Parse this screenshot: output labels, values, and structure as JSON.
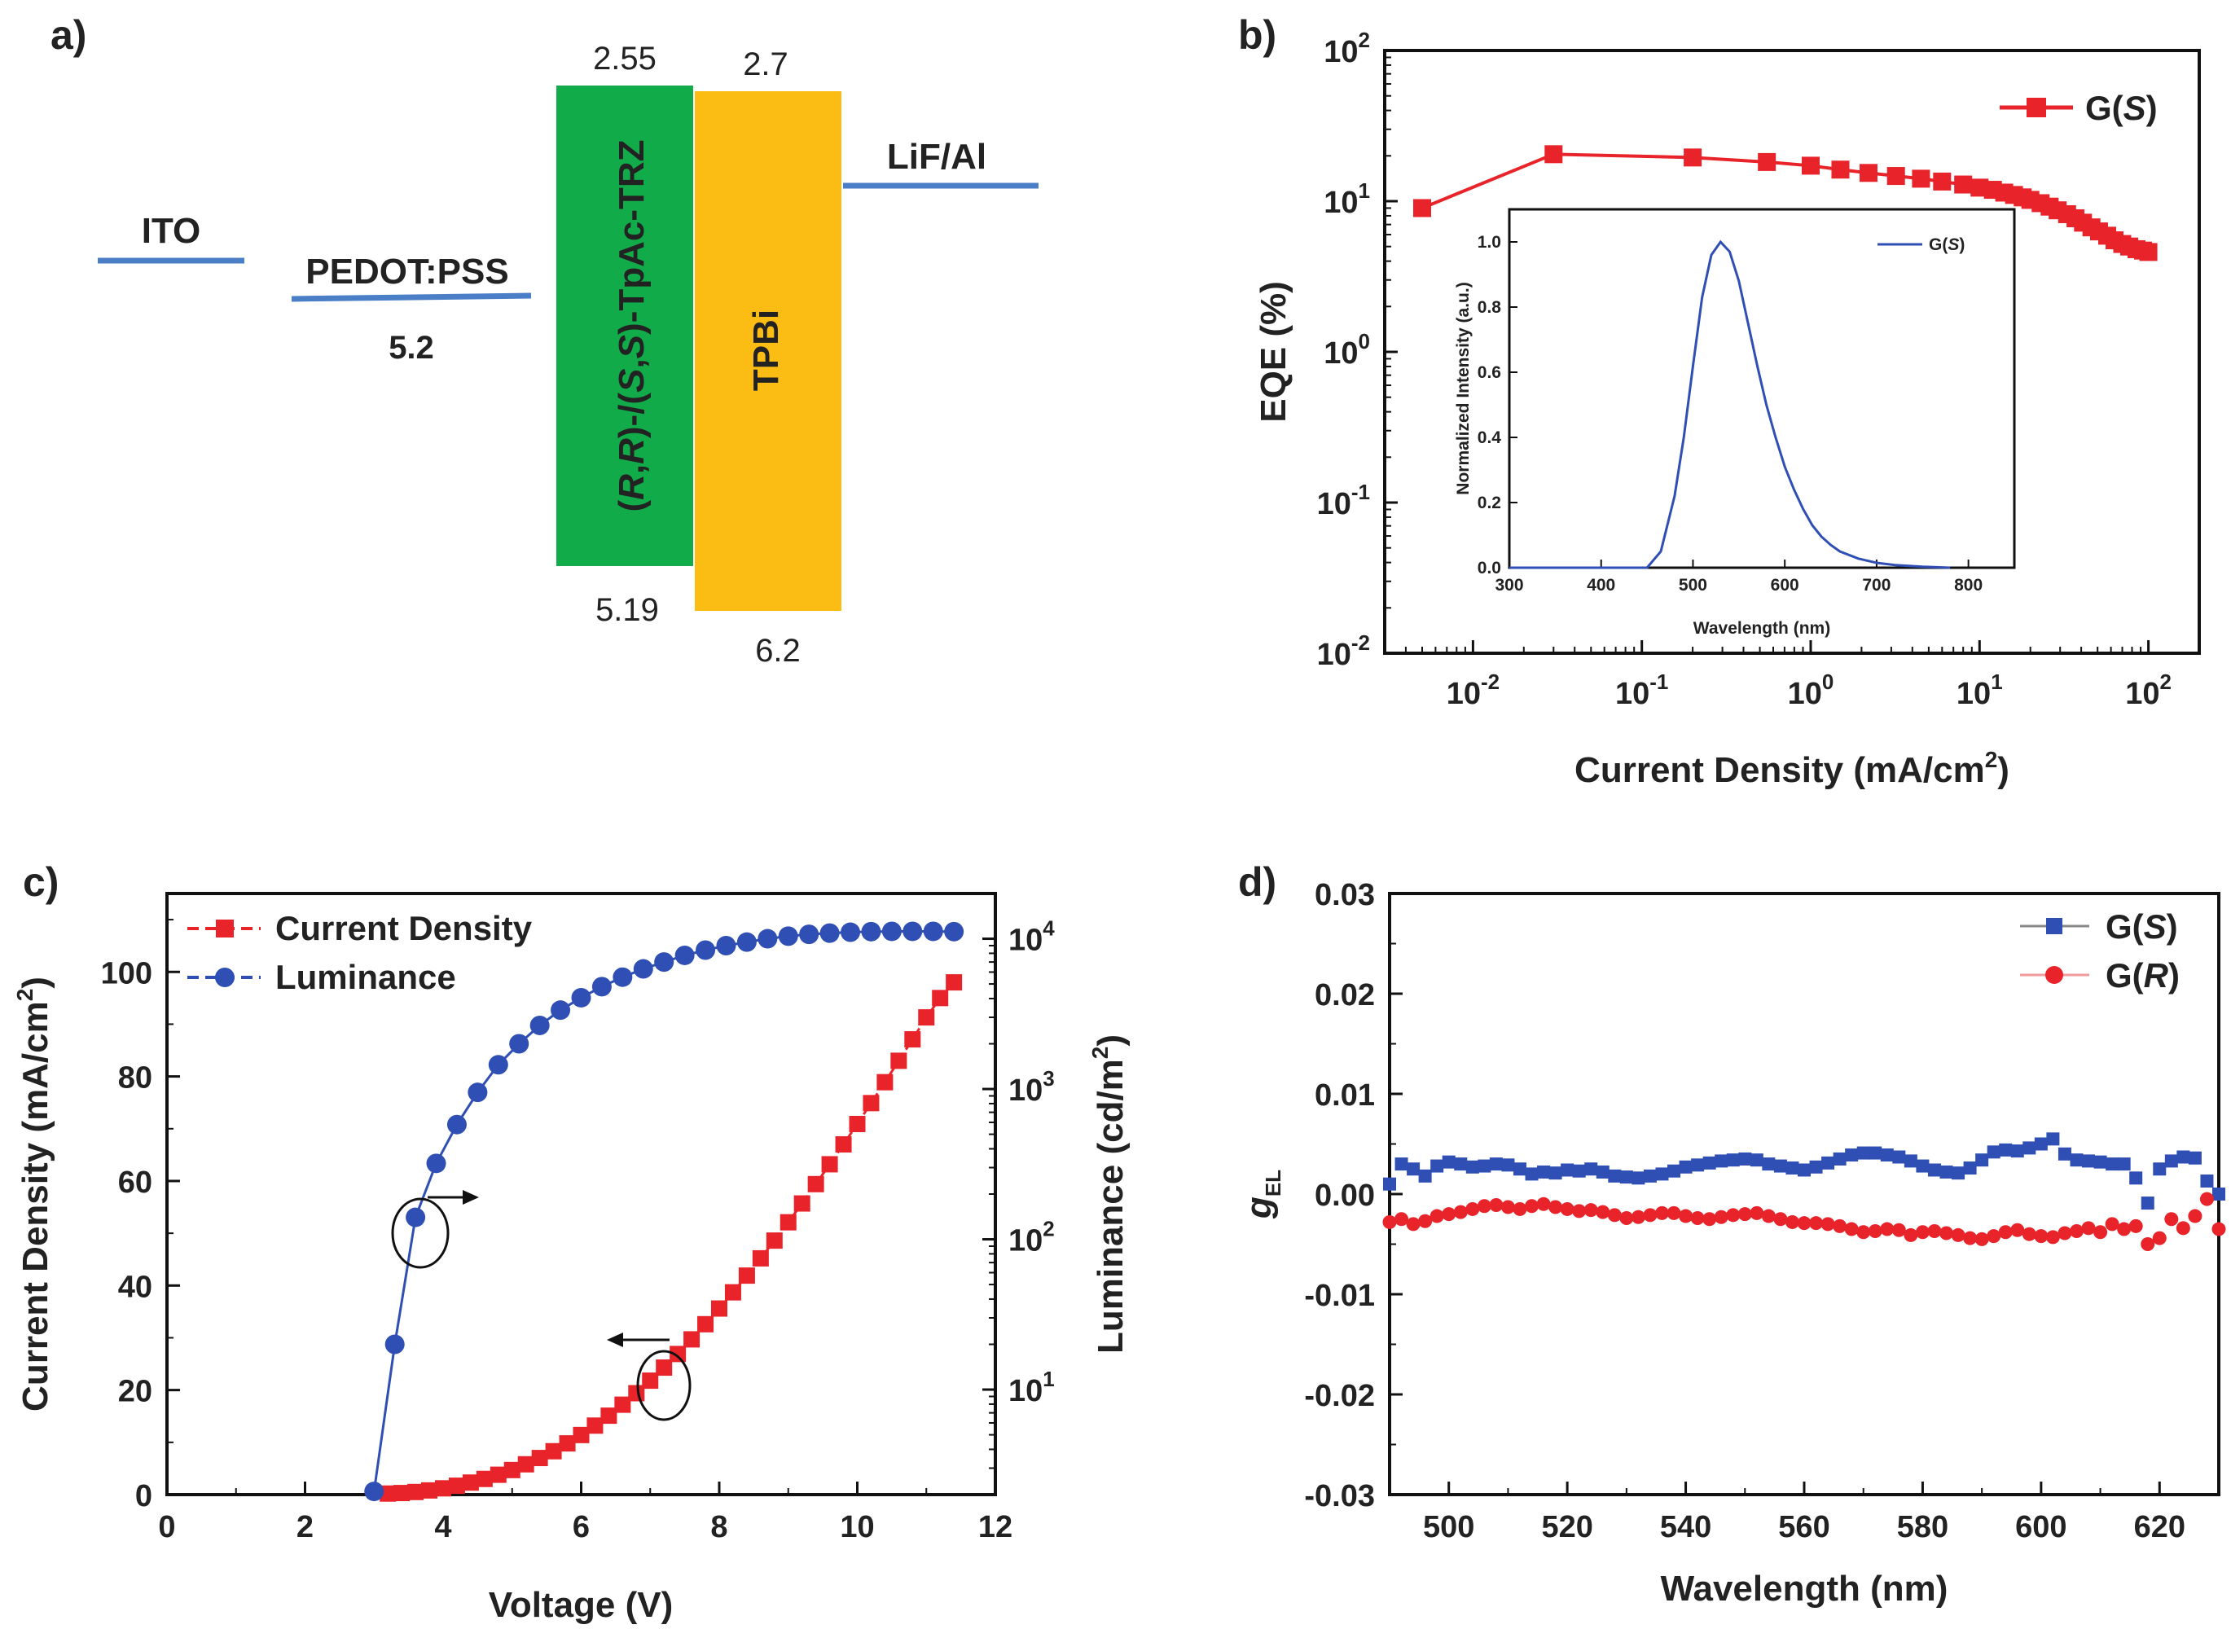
{
  "panels": {
    "a": {
      "label": "a)",
      "electrodes": [
        {
          "name": "ITO",
          "energy": "",
          "color": "#4a7ec7"
        },
        {
          "name": "PEDOT:PSS",
          "energy": "5.2",
          "color": "#4a7ec7"
        },
        {
          "name": "LiF/Al",
          "energy": "",
          "color": "#4a7ec7"
        }
      ],
      "layers": [
        {
          "name": "(R,R)-/(S,S)-TpAc-TRZ",
          "name_parts": [
            "(",
            "R",
            ",",
            "R",
            ")-/(",
            "S",
            ",",
            "S",
            ")-TpAc-TRZ"
          ],
          "lumo": "2.55",
          "homo": "5.19",
          "color": "#12ab4a"
        },
        {
          "name": "TPBi",
          "lumo": "2.7",
          "homo": "6.2",
          "color": "#fbbd13"
        }
      ]
    },
    "b": {
      "label": "b)",
      "xlabel": "Current Density (mA/cm",
      "xlabel_sup": "2",
      "xlabel_end": ")",
      "ylabel": "EQE (%)",
      "x_ticks": [
        {
          "base": "10",
          "exp": "-2"
        },
        {
          "base": "10",
          "exp": "-1"
        },
        {
          "base": "10",
          "exp": "0"
        },
        {
          "base": "10",
          "exp": "1"
        },
        {
          "base": "10",
          "exp": "2"
        }
      ],
      "y_ticks": [
        {
          "base": "10",
          "exp": "-2"
        },
        {
          "base": "10",
          "exp": "-1"
        },
        {
          "base": "10",
          "exp": "0"
        },
        {
          "base": "10",
          "exp": "1"
        },
        {
          "base": "10",
          "exp": "2"
        }
      ],
      "legend": {
        "prefix": "G(",
        "italic": "S",
        "suffix": ")"
      },
      "inset": {
        "xlabel": "Wavelength (nm)",
        "ylabel": "Normalized Intensity (a.u.)",
        "x_ticks": [
          "300",
          "400",
          "500",
          "600",
          "700",
          "800"
        ],
        "y_ticks": [
          "0.0",
          "0.2",
          "0.4",
          "0.6",
          "0.8",
          "1.0"
        ],
        "legend": {
          "prefix": "G(",
          "italic": "S",
          "suffix": ")"
        }
      }
    },
    "c": {
      "label": "c)",
      "xlabel": "Voltage (V)",
      "ylabel_left": "Current Density (mA/cm",
      "ylabel_left_sup": "2",
      "ylabel_left_end": ")",
      "ylabel_right": "Luminance (cd/m",
      "ylabel_right_sup": "2",
      "ylabel_right_end": ")",
      "x_ticks": [
        "0",
        "2",
        "4",
        "6",
        "8",
        "10",
        "12"
      ],
      "y_left_ticks": [
        "0",
        "20",
        "40",
        "60",
        "80",
        "100"
      ],
      "y_right_ticks": [
        {
          "base": "10",
          "exp": "1"
        },
        {
          "base": "10",
          "exp": "2"
        },
        {
          "base": "10",
          "exp": "3"
        },
        {
          "base": "10",
          "exp": "4"
        }
      ],
      "legend": [
        "Current Density",
        "Luminance"
      ]
    },
    "d": {
      "label": "d)",
      "xlabel": "Wavelength (nm)",
      "ylabel": "g",
      "ylabel_sub": "EL",
      "x_ticks": [
        "500",
        "520",
        "540",
        "560",
        "580",
        "600",
        "620"
      ],
      "y_ticks": [
        "-0.03",
        "-0.02",
        "-0.01",
        "0.00",
        "0.01",
        "0.02",
        "0.03"
      ],
      "legend": [
        {
          "prefix": "G(",
          "italic": "S",
          "suffix": ")"
        },
        {
          "prefix": "G(",
          "italic": "R",
          "suffix": ")"
        }
      ]
    }
  },
  "chart_data": [
    {
      "panel": "b",
      "type": "scatter",
      "title": "",
      "xlabel": "Current Density (mA/cm2)",
      "ylabel": "EQE (%)",
      "x_scale": "log",
      "y_scale": "log",
      "xlim": [
        0.003,
        200
      ],
      "ylim": [
        0.01,
        100
      ],
      "legend_position": "top-right",
      "series": [
        {
          "name": "G(S)",
          "color": "#e8232a",
          "x": [
            0.005,
            0.03,
            0.2,
            0.55,
            1,
            1.5,
            2.2,
            3.2,
            4.5,
            6,
            8,
            10,
            12,
            14,
            16,
            18,
            20,
            23,
            26,
            29,
            33,
            37,
            41,
            46,
            51,
            57,
            63,
            70,
            77,
            85,
            93,
            100
          ],
          "y": [
            9.0,
            20.5,
            19.5,
            18.2,
            17.2,
            16.2,
            15.4,
            14.7,
            14.1,
            13.5,
            12.9,
            12.3,
            11.9,
            11.4,
            11.0,
            10.6,
            10.2,
            9.7,
            9.2,
            8.7,
            8.2,
            7.7,
            7.2,
            6.7,
            6.3,
            5.9,
            5.5,
            5.2,
            5.0,
            4.8,
            4.7,
            4.6
          ]
        }
      ]
    },
    {
      "panel": "b-inset",
      "type": "line",
      "xlabel": "Wavelength (nm)",
      "ylabel": "Normalized Intensity (a.u.)",
      "xlim": [
        300,
        850
      ],
      "ylim": [
        0,
        1.1
      ],
      "legend_position": "top-right",
      "series": [
        {
          "name": "G(S)",
          "color": "#2f4fb4",
          "x": [
            300,
            380,
            420,
            450,
            465,
            480,
            490,
            500,
            510,
            520,
            530,
            540,
            550,
            560,
            570,
            580,
            590,
            600,
            610,
            620,
            630,
            640,
            650,
            660,
            680,
            700,
            720,
            750,
            780
          ],
          "y": [
            0,
            0.0,
            0.0,
            0.0,
            0.05,
            0.22,
            0.4,
            0.62,
            0.83,
            0.96,
            1.0,
            0.97,
            0.88,
            0.75,
            0.62,
            0.5,
            0.4,
            0.31,
            0.24,
            0.18,
            0.13,
            0.095,
            0.07,
            0.05,
            0.028,
            0.015,
            0.008,
            0.003,
            0.0
          ]
        }
      ]
    },
    {
      "panel": "c",
      "type": "line",
      "xlabel": "Voltage (V)",
      "ylabel": "Current Density (mA/cm2)",
      "ylabel_right": "Luminance (cd/m2)",
      "xlim": [
        0,
        12
      ],
      "ylim": [
        0,
        115
      ],
      "y_right_scale": "log",
      "y_right_lim": [
        2,
        20000
      ],
      "legend_position": "top-left",
      "series": [
        {
          "name": "Current Density",
          "axis": "left",
          "color": "#e8232a",
          "x": [
            3.2,
            3.4,
            3.6,
            3.8,
            4.0,
            4.2,
            4.4,
            4.6,
            4.8,
            5.0,
            5.2,
            5.4,
            5.6,
            5.8,
            6.0,
            6.2,
            6.4,
            6.6,
            6.8,
            7.0,
            7.2,
            7.4,
            7.6,
            7.8,
            8.0,
            8.2,
            8.4,
            8.6,
            8.8,
            9.0,
            9.2,
            9.4,
            9.6,
            9.8,
            10.0,
            10.2,
            10.4,
            10.6,
            10.8,
            11.0,
            11.2,
            11.4
          ],
          "y": [
            0.2,
            0.3,
            0.5,
            0.8,
            1.2,
            1.7,
            2.3,
            3.0,
            3.8,
            4.7,
            5.8,
            7.0,
            8.3,
            9.8,
            11.4,
            13.2,
            15.1,
            17.2,
            19.4,
            21.8,
            24.3,
            26.9,
            29.7,
            32.6,
            35.6,
            38.7,
            41.9,
            45.2,
            48.6,
            52.1,
            55.7,
            59.4,
            63.2,
            67.0,
            70.9,
            74.9,
            78.9,
            83.0,
            87.1,
            91.3,
            95.0,
            98.0
          ]
        },
        {
          "name": "Luminance",
          "axis": "right",
          "color": "#2f4fb4",
          "x": [
            3.0,
            3.3,
            3.6,
            3.9,
            4.2,
            4.5,
            4.8,
            5.1,
            5.4,
            5.7,
            6.0,
            6.3,
            6.6,
            6.9,
            7.2,
            7.5,
            7.8,
            8.1,
            8.4,
            8.7,
            9.0,
            9.3,
            9.6,
            9.9,
            10.2,
            10.5,
            10.8,
            11.1,
            11.4
          ],
          "y": [
            2.1,
            20,
            140,
            320,
            580,
            950,
            1450,
            2000,
            2650,
            3350,
            4050,
            4800,
            5550,
            6300,
            7000,
            7750,
            8400,
            9000,
            9500,
            10000,
            10400,
            10700,
            10900,
            11050,
            11150,
            11200,
            11200,
            11200,
            11150
          ]
        }
      ]
    },
    {
      "panel": "d",
      "type": "scatter",
      "xlabel": "Wavelength (nm)",
      "ylabel": "gEL",
      "xlim": [
        490,
        630
      ],
      "ylim": [
        -0.03,
        0.03
      ],
      "legend_position": "top-right",
      "series": [
        {
          "name": "G(S)",
          "color": "#2f4fb4",
          "x": [
            490,
            492,
            494,
            496,
            498,
            500,
            502,
            504,
            506,
            508,
            510,
            512,
            514,
            516,
            518,
            520,
            522,
            524,
            526,
            528,
            530,
            532,
            534,
            536,
            538,
            540,
            542,
            544,
            546,
            548,
            550,
            552,
            554,
            556,
            558,
            560,
            562,
            564,
            566,
            568,
            570,
            572,
            574,
            576,
            578,
            580,
            582,
            584,
            586,
            588,
            590,
            592,
            594,
            596,
            598,
            600,
            602,
            604,
            606,
            608,
            610,
            612,
            614,
            616,
            618,
            620,
            622,
            624,
            626,
            628,
            630
          ],
          "y": [
            0.001,
            0.003,
            0.0025,
            0.0018,
            0.0028,
            0.0032,
            0.003,
            0.0027,
            0.0028,
            0.003,
            0.0029,
            0.0025,
            0.002,
            0.0022,
            0.0021,
            0.0024,
            0.0023,
            0.0025,
            0.0022,
            0.0018,
            0.0017,
            0.0016,
            0.0018,
            0.002,
            0.0023,
            0.0027,
            0.0029,
            0.0031,
            0.0033,
            0.0034,
            0.0035,
            0.0034,
            0.003,
            0.0028,
            0.0026,
            0.0024,
            0.0027,
            0.0031,
            0.0035,
            0.0039,
            0.0041,
            0.0041,
            0.0039,
            0.0037,
            0.0033,
            0.0028,
            0.0024,
            0.0022,
            0.0021,
            0.0026,
            0.0034,
            0.0042,
            0.0044,
            0.0043,
            0.0046,
            0.005,
            0.0055,
            0.004,
            0.0034,
            0.0033,
            0.0032,
            0.003,
            0.003,
            0.0016,
            -0.0009,
            0.0025,
            0.0033,
            0.0037,
            0.0036,
            0.0013,
            0.0
          ]
        },
        {
          "name": "G(R)",
          "color": "#e8232a",
          "x": [
            490,
            492,
            494,
            496,
            498,
            500,
            502,
            504,
            506,
            508,
            510,
            512,
            514,
            516,
            518,
            520,
            522,
            524,
            526,
            528,
            530,
            532,
            534,
            536,
            538,
            540,
            542,
            544,
            546,
            548,
            550,
            552,
            554,
            556,
            558,
            560,
            562,
            564,
            566,
            568,
            570,
            572,
            574,
            576,
            578,
            580,
            582,
            584,
            586,
            588,
            590,
            592,
            594,
            596,
            598,
            600,
            602,
            604,
            606,
            608,
            610,
            612,
            614,
            616,
            618,
            620,
            622,
            624,
            626,
            628,
            630
          ],
          "y": [
            -0.0028,
            -0.0025,
            -0.003,
            -0.0027,
            -0.0022,
            -0.002,
            -0.0018,
            -0.0015,
            -0.0012,
            -0.0011,
            -0.0013,
            -0.0015,
            -0.0012,
            -0.001,
            -0.0013,
            -0.0015,
            -0.0017,
            -0.0016,
            -0.0018,
            -0.0021,
            -0.0024,
            -0.0023,
            -0.0021,
            -0.0019,
            -0.0019,
            -0.0022,
            -0.0024,
            -0.0025,
            -0.0023,
            -0.0021,
            -0.002,
            -0.0019,
            -0.0022,
            -0.0025,
            -0.0028,
            -0.0029,
            -0.0029,
            -0.003,
            -0.0032,
            -0.0035,
            -0.0038,
            -0.0037,
            -0.0035,
            -0.0036,
            -0.0041,
            -0.0038,
            -0.0037,
            -0.0039,
            -0.0041,
            -0.0044,
            -0.0045,
            -0.0042,
            -0.0038,
            -0.0036,
            -0.004,
            -0.0042,
            -0.0043,
            -0.0039,
            -0.0037,
            -0.0034,
            -0.0038,
            -0.003,
            -0.0035,
            -0.0032,
            -0.005,
            -0.0044,
            -0.0025,
            -0.0034,
            -0.0022,
            -0.0005,
            -0.0035
          ]
        }
      ]
    }
  ]
}
